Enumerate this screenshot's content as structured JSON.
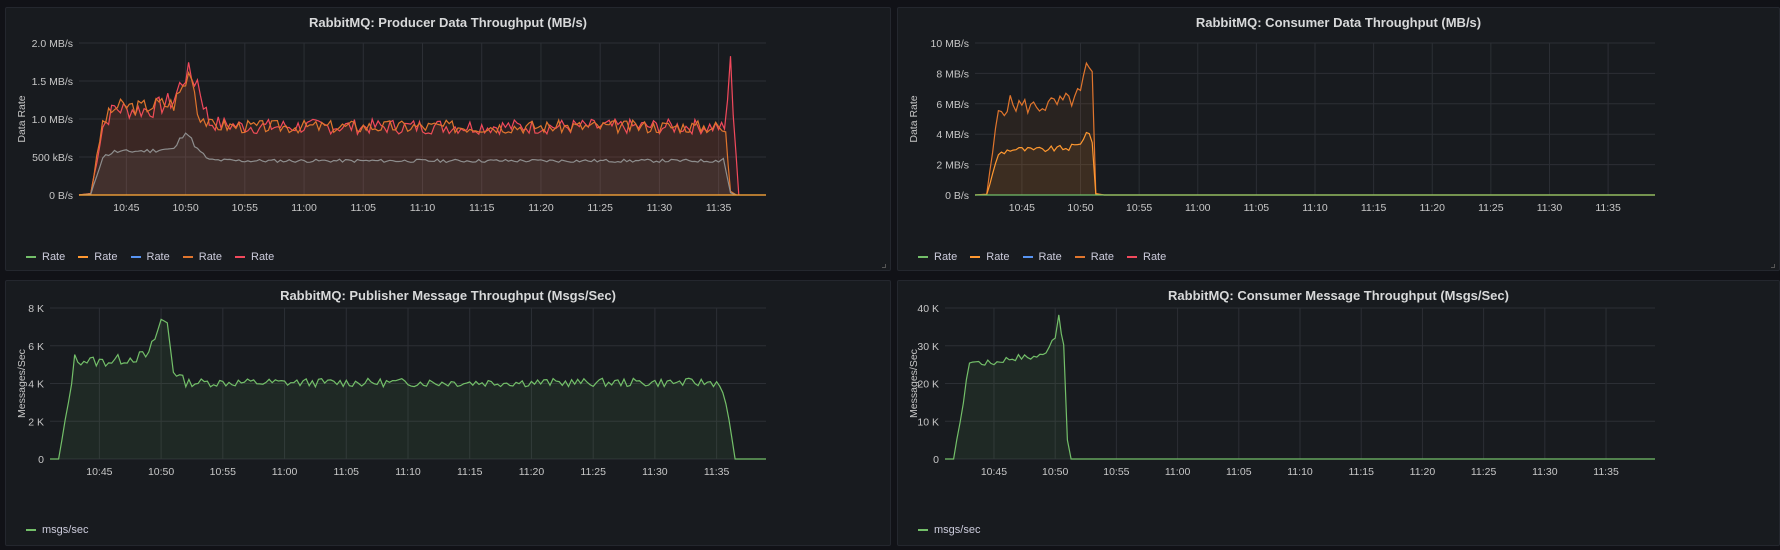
{
  "dashboard": {
    "background": "#111217",
    "colors": {
      "green": "#73bf69",
      "orange": "#ff9830",
      "blue": "#5794f2",
      "darkorange": "#e0752d",
      "red": "#f2495c",
      "gray": "#8e8e8e"
    }
  },
  "chart_data": [
    {
      "id": "producer-data",
      "type": "area",
      "title": "RabbitMQ: Producer Data Throughput (MB/s)",
      "ylabel": "Data Rate",
      "xlabel": "",
      "time_range": [
        "10:41",
        "11:39"
      ],
      "x_ticks": [
        "10:45",
        "10:50",
        "10:55",
        "11:00",
        "11:05",
        "11:10",
        "11:15",
        "11:20",
        "11:25",
        "11:30",
        "11:35"
      ],
      "ylim": [
        0,
        2.0
      ],
      "y_ticks": [
        {
          "v": 0,
          "label": "0 B/s"
        },
        {
          "v": 0.5,
          "label": "500 kB/s"
        },
        {
          "v": 1.0,
          "label": "1.0 MB/s"
        },
        {
          "v": 1.5,
          "label": "1.5 MB/s"
        },
        {
          "v": 2.0,
          "label": "2.0 MB/s"
        }
      ],
      "legend": [
        "Rate",
        "Rate",
        "Rate",
        "Rate",
        "Rate"
      ],
      "legend_colors": [
        "#73bf69",
        "#ff9830",
        "#5794f2",
        "#e0752d",
        "#f2495c"
      ],
      "series": [
        {
          "name": "Rate",
          "color": "#f2495c",
          "fill": true,
          "noise": 0.07,
          "seed": 7,
          "points": [
            [
              "10:41",
              0
            ],
            [
              "10:42",
              0.02
            ],
            [
              "10:43",
              0.9
            ],
            [
              "10:44",
              1.15
            ],
            [
              "10:45",
              1.12
            ],
            [
              "10:46",
              1.12
            ],
            [
              "10:47",
              1.12
            ],
            [
              "10:48",
              1.18
            ],
            [
              "10:49",
              1.25
            ],
            [
              "10:50",
              1.6
            ],
            [
              "10:51",
              1.5
            ],
            [
              "10:52",
              0.95
            ],
            [
              "10:55",
              0.9
            ],
            [
              "11:00",
              0.9
            ],
            [
              "11:05",
              0.9
            ],
            [
              "11:10",
              0.9
            ],
            [
              "11:15",
              0.9
            ],
            [
              "11:20",
              0.9
            ],
            [
              "11:25",
              0.9
            ],
            [
              "11:30",
              0.9
            ],
            [
              "11:35",
              0.9
            ],
            [
              "11:35.5",
              0.85
            ],
            [
              "11:36",
              1.7
            ],
            [
              "11:36.7",
              0
            ]
          ]
        },
        {
          "name": "Rate",
          "color": "#e0752d",
          "fill": true,
          "noise": 0.06,
          "seed": 3,
          "points": [
            [
              "10:41",
              0
            ],
            [
              "10:42",
              0.02
            ],
            [
              "10:43",
              0.95
            ],
            [
              "10:44",
              1.15
            ],
            [
              "10:45",
              1.17
            ],
            [
              "10:46",
              1.15
            ],
            [
              "10:47",
              1.18
            ],
            [
              "10:48",
              1.2
            ],
            [
              "10:49",
              1.2
            ],
            [
              "10:50",
              1.5
            ],
            [
              "10:50.5",
              1.68
            ],
            [
              "10:51",
              1.1
            ],
            [
              "10:52",
              0.92
            ],
            [
              "10:55",
              0.9
            ],
            [
              "11:00",
              0.9
            ],
            [
              "11:05",
              0.9
            ],
            [
              "11:10",
              0.9
            ],
            [
              "11:15",
              0.9
            ],
            [
              "11:20",
              0.9
            ],
            [
              "11:25",
              0.9
            ],
            [
              "11:30",
              0.9
            ],
            [
              "11:35",
              0.9
            ],
            [
              "11:35.6",
              0.8
            ],
            [
              "11:36",
              0.05
            ],
            [
              "11:36.5",
              0
            ]
          ]
        },
        {
          "name": "Rate",
          "color": "#8e8e8e",
          "fill": true,
          "noise": 0.03,
          "seed": 11,
          "points": [
            [
              "10:41",
              0
            ],
            [
              "10:42",
              0.01
            ],
            [
              "10:43",
              0.5
            ],
            [
              "10:44",
              0.57
            ],
            [
              "10:45",
              0.57
            ],
            [
              "10:46",
              0.58
            ],
            [
              "10:47",
              0.58
            ],
            [
              "10:48",
              0.6
            ],
            [
              "10:49",
              0.6
            ],
            [
              "10:50",
              0.85
            ],
            [
              "10:51",
              0.6
            ],
            [
              "10:52",
              0.46
            ],
            [
              "10:55",
              0.45
            ],
            [
              "11:00",
              0.45
            ],
            [
              "11:05",
              0.45
            ],
            [
              "11:10",
              0.45
            ],
            [
              "11:15",
              0.45
            ],
            [
              "11:20",
              0.45
            ],
            [
              "11:25",
              0.45
            ],
            [
              "11:30",
              0.45
            ],
            [
              "11:35",
              0.45
            ],
            [
              "11:35.4",
              0.48
            ],
            [
              "11:36",
              0.03
            ],
            [
              "11:36.5",
              0
            ]
          ]
        },
        {
          "name": "Rate",
          "color": "#73bf69",
          "fill": false,
          "noise": 0,
          "seed": 1,
          "points": [
            [
              "10:41",
              0
            ],
            [
              "11:39",
              0
            ]
          ]
        },
        {
          "name": "Rate",
          "color": "#ff9830",
          "fill": false,
          "noise": 0,
          "seed": 2,
          "points": [
            [
              "10:41",
              0
            ],
            [
              "11:39",
              0
            ]
          ]
        }
      ]
    },
    {
      "id": "consumer-data",
      "type": "area",
      "title": "RabbitMQ: Consumer Data Throughput (MB/s)",
      "ylabel": "Data Rate",
      "xlabel": "",
      "time_range": [
        "10:41",
        "11:39"
      ],
      "x_ticks": [
        "10:45",
        "10:50",
        "10:55",
        "11:00",
        "11:05",
        "11:10",
        "11:15",
        "11:20",
        "11:25",
        "11:30",
        "11:35"
      ],
      "ylim": [
        0,
        10
      ],
      "y_ticks": [
        {
          "v": 0,
          "label": "0 B/s"
        },
        {
          "v": 2,
          "label": "2 MB/s"
        },
        {
          "v": 4,
          "label": "4 MB/s"
        },
        {
          "v": 6,
          "label": "6 MB/s"
        },
        {
          "v": 8,
          "label": "8 MB/s"
        },
        {
          "v": 10,
          "label": "10 MB/s"
        }
      ],
      "legend": [
        "Rate",
        "Rate",
        "Rate",
        "Rate",
        "Rate"
      ],
      "legend_colors": [
        "#73bf69",
        "#ff9830",
        "#5794f2",
        "#e0752d",
        "#f2495c"
      ],
      "series": [
        {
          "name": "Rate",
          "color": "#e0752d",
          "fill": true,
          "noise": 0.06,
          "seed": 5,
          "points": [
            [
              "10:41",
              0
            ],
            [
              "10:42",
              0.05
            ],
            [
              "10:43",
              5.5
            ],
            [
              "10:44",
              6.0
            ],
            [
              "10:45",
              5.9
            ],
            [
              "10:46",
              5.8
            ],
            [
              "10:47",
              5.9
            ],
            [
              "10:48",
              6.0
            ],
            [
              "10:49",
              6.2
            ],
            [
              "10:50",
              6.6
            ],
            [
              "10:50.5",
              8.3
            ],
            [
              "10:51",
              7.5
            ],
            [
              "10:51.3",
              0.1
            ],
            [
              "10:52",
              0
            ],
            [
              "11:39",
              0
            ]
          ]
        },
        {
          "name": "Rate",
          "color": "#ff9830",
          "fill": true,
          "noise": 0.04,
          "seed": 9,
          "points": [
            [
              "10:41",
              0
            ],
            [
              "10:42",
              0.03
            ],
            [
              "10:43",
              2.7
            ],
            [
              "10:44",
              3.0
            ],
            [
              "10:45",
              3.0
            ],
            [
              "10:46",
              2.95
            ],
            [
              "10:47",
              3.0
            ],
            [
              "10:48",
              3.05
            ],
            [
              "10:49",
              3.1
            ],
            [
              "10:50",
              3.3
            ],
            [
              "10:50.5",
              4.3
            ],
            [
              "10:51",
              3.6
            ],
            [
              "10:51.3",
              0.05
            ],
            [
              "10:52",
              0
            ],
            [
              "11:39",
              0
            ]
          ]
        },
        {
          "name": "Rate",
          "color": "#73bf69",
          "fill": false,
          "noise": 0,
          "seed": 1,
          "points": [
            [
              "10:41",
              0
            ],
            [
              "11:39",
              0
            ]
          ]
        }
      ]
    },
    {
      "id": "publisher-msgs",
      "type": "area",
      "title": "RabbitMQ: Publisher Message Throughput (Msgs/Sec)",
      "ylabel": "Messages/Sec",
      "xlabel": "",
      "time_range": [
        "10:41",
        "11:39"
      ],
      "x_ticks": [
        "10:45",
        "10:50",
        "10:55",
        "11:00",
        "11:05",
        "11:10",
        "11:15",
        "11:20",
        "11:25",
        "11:30",
        "11:35"
      ],
      "ylim": [
        0,
        8000
      ],
      "y_ticks": [
        {
          "v": 0,
          "label": "0"
        },
        {
          "v": 2000,
          "label": "2 K"
        },
        {
          "v": 4000,
          "label": "4 K"
        },
        {
          "v": 6000,
          "label": "6 K"
        },
        {
          "v": 8000,
          "label": "8 K"
        }
      ],
      "legend": [
        "msgs/sec"
      ],
      "legend_colors": [
        "#73bf69"
      ],
      "series": [
        {
          "name": "msgs/sec",
          "color": "#73bf69",
          "fill": true,
          "noise": 0.035,
          "seed": 13,
          "points": [
            [
              "10:41",
              0
            ],
            [
              "10:41.7",
              0.02
            ],
            [
              "10:42.5",
              3000
            ],
            [
              "10:43",
              5300
            ],
            [
              "10:44",
              5200
            ],
            [
              "10:45",
              5150
            ],
            [
              "10:46",
              5200
            ],
            [
              "10:47",
              5300
            ],
            [
              "10:48",
              5400
            ],
            [
              "10:49",
              5500
            ],
            [
              "10:50",
              7300
            ],
            [
              "10:50.5",
              7200
            ],
            [
              "10:51",
              4700
            ],
            [
              "10:52",
              4050
            ],
            [
              "10:55",
              4050
            ],
            [
              "11:00",
              4050
            ],
            [
              "11:05",
              4050
            ],
            [
              "11:10",
              4050
            ],
            [
              "11:15",
              4050
            ],
            [
              "11:20",
              4050
            ],
            [
              "11:25",
              4050
            ],
            [
              "11:30",
              4050
            ],
            [
              "11:35",
              4050
            ],
            [
              "11:35.5",
              3700
            ],
            [
              "11:36",
              2000
            ],
            [
              "11:36.5",
              0
            ],
            [
              "11:39",
              0
            ]
          ]
        }
      ]
    },
    {
      "id": "consumer-msgs",
      "type": "area",
      "title": "RabbitMQ: Consumer Message Throughput (Msgs/Sec)",
      "ylabel": "Messages/Sec",
      "xlabel": "",
      "time_range": [
        "10:41",
        "11:39"
      ],
      "x_ticks": [
        "10:45",
        "10:50",
        "10:55",
        "11:00",
        "11:05",
        "11:10",
        "11:15",
        "11:20",
        "11:25",
        "11:30",
        "11:35"
      ],
      "ylim": [
        0,
        40000
      ],
      "y_ticks": [
        {
          "v": 0,
          "label": "0"
        },
        {
          "v": 10000,
          "label": "10 K"
        },
        {
          "v": 20000,
          "label": "20 K"
        },
        {
          "v": 30000,
          "label": "30 K"
        },
        {
          "v": 40000,
          "label": "40 K"
        }
      ],
      "legend": [
        "msgs/sec"
      ],
      "legend_colors": [
        "#73bf69"
      ],
      "series": [
        {
          "name": "msgs/sec",
          "color": "#73bf69",
          "fill": true,
          "noise": 0.02,
          "seed": 17,
          "points": [
            [
              "10:41",
              0
            ],
            [
              "10:41.7",
              0.02
            ],
            [
              "10:42.5",
              15000
            ],
            [
              "10:43",
              26000
            ],
            [
              "10:44",
              25500
            ],
            [
              "10:45",
              25500
            ],
            [
              "10:46",
              26500
            ],
            [
              "10:47",
              27000
            ],
            [
              "10:48",
              27000
            ],
            [
              "10:49",
              27500
            ],
            [
              "10:50",
              33000
            ],
            [
              "10:50.3",
              37000
            ],
            [
              "10:50.7",
              30000
            ],
            [
              "10:51",
              5000
            ],
            [
              "10:51.3",
              0
            ],
            [
              "11:39",
              0
            ]
          ]
        }
      ]
    }
  ]
}
